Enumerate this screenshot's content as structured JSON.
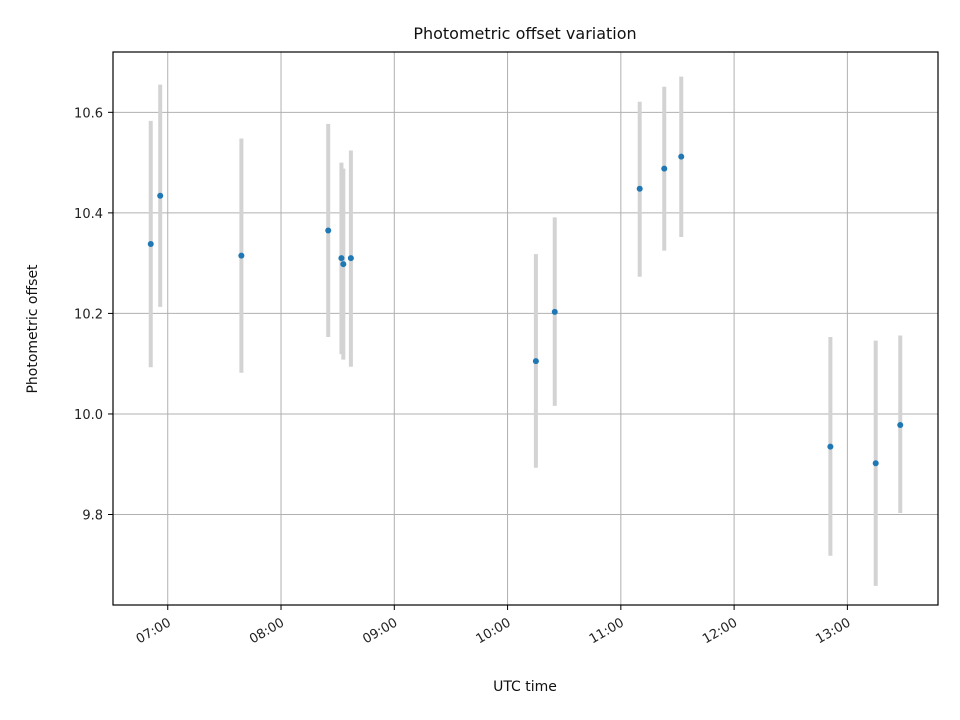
{
  "chart_data": {
    "type": "scatter",
    "title": "Photometric offset variation",
    "xlabel": "UTC time",
    "ylabel": "Photometric offset",
    "x_axis_type": "time",
    "xlim": [
      "06:31",
      "13:48"
    ],
    "ylim": [
      9.62,
      10.72
    ],
    "x_ticks": [
      "07:00",
      "08:00",
      "09:00",
      "10:00",
      "11:00",
      "12:00",
      "13:00"
    ],
    "y_ticks": [
      9.8,
      10.0,
      10.2,
      10.4,
      10.6
    ],
    "grid": true,
    "legend": "none",
    "marker_color": "#1f77b4",
    "errorbar_color": "#d3d3d3",
    "series": [
      {
        "points": [
          {
            "x": "06:51",
            "y": 10.338,
            "y_low": 10.093,
            "y_high": 10.583
          },
          {
            "x": "06:56",
            "y": 10.434,
            "y_low": 10.213,
            "y_high": 10.655
          },
          {
            "x": "07:39",
            "y": 10.315,
            "y_low": 10.082,
            "y_high": 10.548
          },
          {
            "x": "08:25",
            "y": 10.365,
            "y_low": 10.153,
            "y_high": 10.577
          },
          {
            "x": "08:32",
            "y": 10.31,
            "y_low": 10.119,
            "y_high": 10.5
          },
          {
            "x": "08:33",
            "y": 10.298,
            "y_low": 10.108,
            "y_high": 10.488
          },
          {
            "x": "08:37",
            "y": 10.31,
            "y_low": 10.094,
            "y_high": 10.524
          },
          {
            "x": "10:15",
            "y": 10.105,
            "y_low": 9.893,
            "y_high": 10.318
          },
          {
            "x": "10:25",
            "y": 10.203,
            "y_low": 10.016,
            "y_high": 10.391
          },
          {
            "x": "11:10",
            "y": 10.448,
            "y_low": 10.273,
            "y_high": 10.621
          },
          {
            "x": "11:23",
            "y": 10.488,
            "y_low": 10.325,
            "y_high": 10.651
          },
          {
            "x": "11:32",
            "y": 10.512,
            "y_low": 10.352,
            "y_high": 10.671
          },
          {
            "x": "12:51",
            "y": 9.935,
            "y_low": 9.718,
            "y_high": 10.153
          },
          {
            "x": "13:15",
            "y": 9.902,
            "y_low": 9.658,
            "y_high": 10.146
          },
          {
            "x": "13:28",
            "y": 9.978,
            "y_low": 9.803,
            "y_high": 10.156
          }
        ]
      }
    ]
  }
}
